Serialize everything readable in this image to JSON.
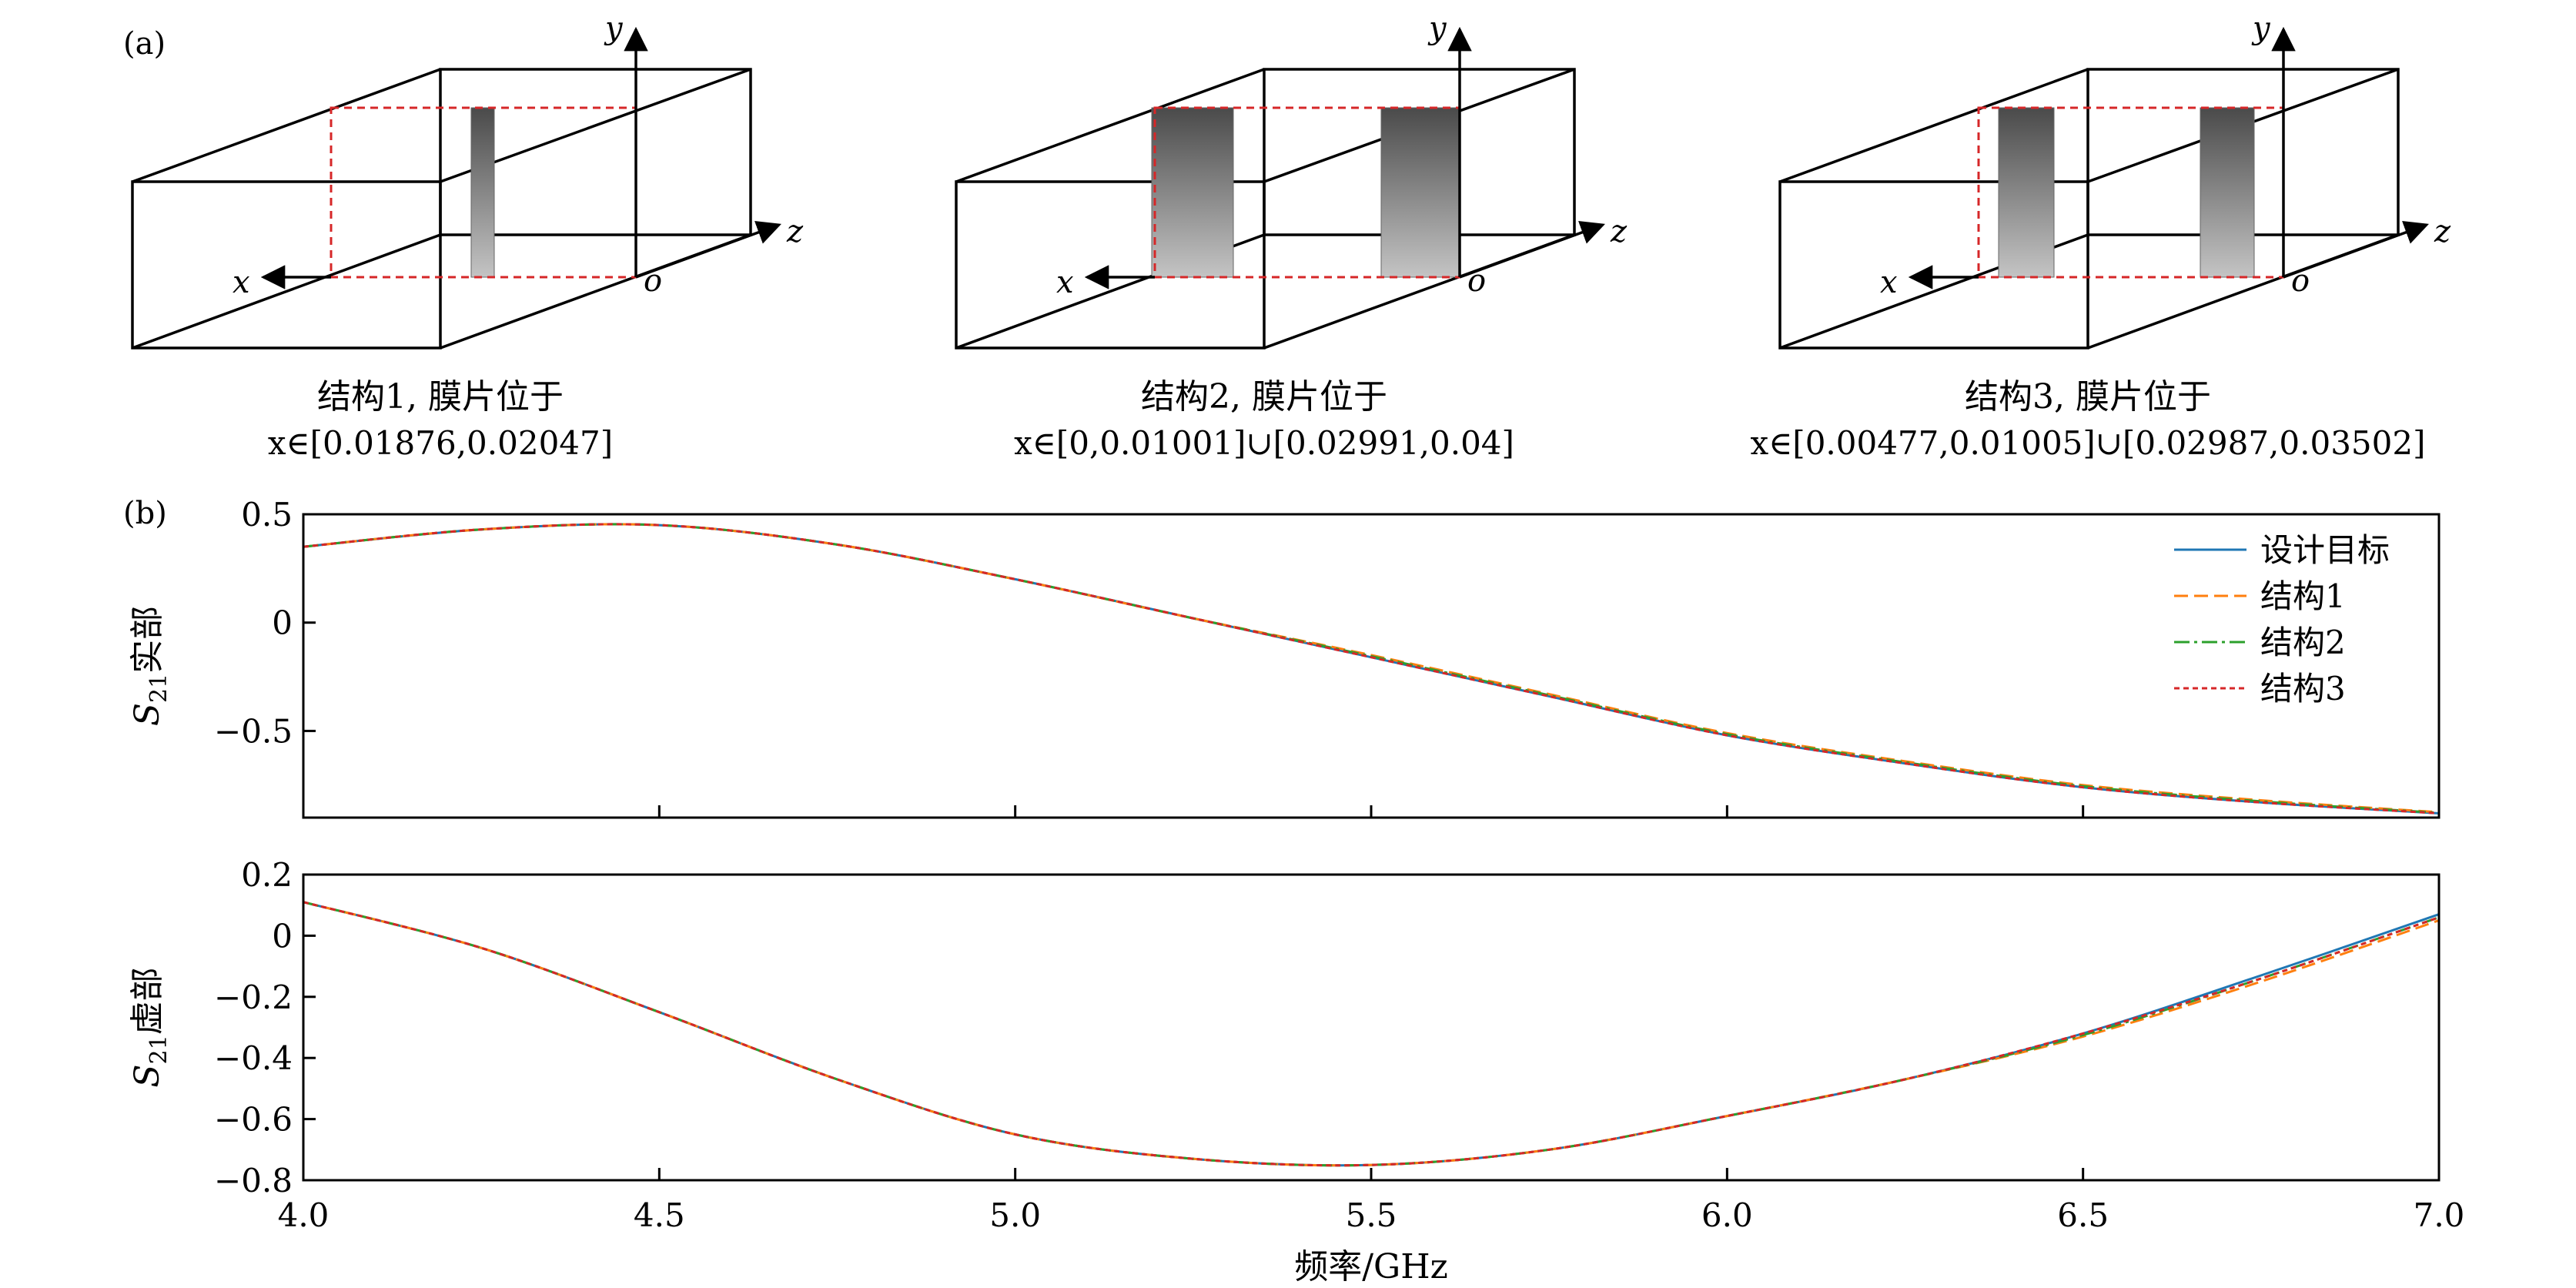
{
  "panel_a": {
    "label": "(a)",
    "axes": {
      "x": "x",
      "y": "y",
      "z": "z",
      "origin": "o"
    },
    "structures": [
      {
        "caption": "结构1, 膜片位于",
        "range": "x∈[0.01876,0.02047]"
      },
      {
        "caption": "结构2, 膜片位于",
        "range": "x∈[0,0.01001]∪[0.02991,0.04]"
      },
      {
        "caption": "结构3, 膜片位于",
        "range": "x∈[0.00477,0.01005]∪[0.02987,0.03502]"
      }
    ]
  },
  "panel_b": {
    "label": "(b)"
  },
  "colors": {
    "设计目标": "#1f77b4",
    "结构1": "#ff7f0e",
    "结构2": "#2ca02c",
    "结构3": "#d62728",
    "dashed_box": "#d62728"
  },
  "chart_data": [
    {
      "type": "line",
      "ylabel": "S21实部",
      "ylim": [
        -0.9,
        0.5
      ],
      "xlim": [
        4.0,
        7.0
      ],
      "yticks": [
        "0.5",
        "0",
        "−0.5"
      ],
      "legend": {
        "placement": "top-right",
        "entries": [
          "设计目标",
          "结构1",
          "结构2",
          "结构3"
        ]
      },
      "x": [
        4.0,
        4.25,
        4.5,
        4.75,
        5.0,
        5.25,
        5.5,
        5.75,
        6.0,
        6.25,
        6.5,
        6.75,
        7.0
      ],
      "series": [
        {
          "name": "设计目标",
          "values": [
            0.35,
            0.43,
            0.45,
            0.36,
            0.2,
            0.02,
            -0.16,
            -0.34,
            -0.52,
            -0.65,
            -0.76,
            -0.83,
            -0.88
          ]
        },
        {
          "name": "结构1",
          "values": [
            0.35,
            0.43,
            0.45,
            0.36,
            0.2,
            0.02,
            -0.15,
            -0.33,
            -0.51,
            -0.64,
            -0.75,
            -0.82,
            -0.875
          ]
        },
        {
          "name": "结构2",
          "values": [
            0.35,
            0.43,
            0.45,
            0.36,
            0.2,
            0.02,
            -0.155,
            -0.335,
            -0.515,
            -0.645,
            -0.755,
            -0.825,
            -0.878
          ]
        },
        {
          "name": "结构3",
          "values": [
            0.35,
            0.43,
            0.45,
            0.36,
            0.2,
            0.02,
            -0.16,
            -0.34,
            -0.52,
            -0.65,
            -0.76,
            -0.83,
            -0.88
          ]
        }
      ]
    },
    {
      "type": "line",
      "ylabel": "S21虚部",
      "xlabel": "频率/GHz",
      "ylim": [
        -0.8,
        0.2
      ],
      "xlim": [
        4.0,
        7.0
      ],
      "xticks": [
        "4.0",
        "4.5",
        "5.0",
        "5.5",
        "6.0",
        "6.5",
        "7.0"
      ],
      "yticks": [
        "0.2",
        "0",
        "−0.2",
        "−0.4",
        "−0.6",
        "−0.8"
      ],
      "x": [
        4.0,
        4.25,
        4.5,
        4.75,
        5.0,
        5.25,
        5.5,
        5.75,
        6.0,
        6.25,
        6.5,
        6.75,
        7.0
      ],
      "series": [
        {
          "name": "设计目标",
          "values": [
            0.11,
            -0.04,
            -0.25,
            -0.47,
            -0.65,
            -0.73,
            -0.75,
            -0.7,
            -0.59,
            -0.47,
            -0.32,
            -0.13,
            0.07
          ]
        },
        {
          "name": "结构1",
          "values": [
            0.11,
            -0.04,
            -0.25,
            -0.47,
            -0.65,
            -0.73,
            -0.75,
            -0.7,
            -0.59,
            -0.47,
            -0.33,
            -0.15,
            0.05
          ]
        },
        {
          "name": "结构2",
          "values": [
            0.11,
            -0.04,
            -0.25,
            -0.47,
            -0.65,
            -0.73,
            -0.75,
            -0.7,
            -0.59,
            -0.47,
            -0.325,
            -0.14,
            0.06
          ]
        },
        {
          "name": "结构3",
          "values": [
            0.11,
            -0.04,
            -0.25,
            -0.47,
            -0.65,
            -0.73,
            -0.75,
            -0.7,
            -0.59,
            -0.47,
            -0.32,
            -0.14,
            0.06
          ]
        }
      ]
    }
  ]
}
